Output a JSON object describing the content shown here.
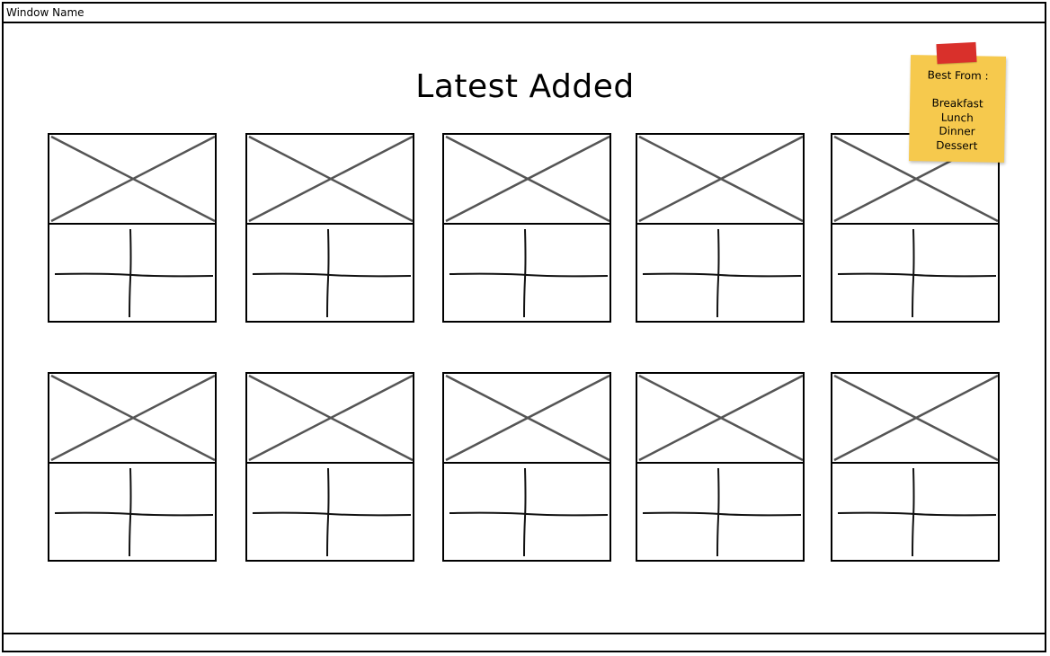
{
  "window": {
    "title": "Window Name"
  },
  "main": {
    "title": "Latest Added"
  },
  "sticky_note": {
    "heading": "Best From :",
    "items": [
      "Breakfast",
      "Lunch",
      "Dinner",
      "Dessert"
    ],
    "color": "#f6c94d",
    "tape_color": "#d9302b"
  },
  "grid": {
    "rows": 2,
    "columns": 5,
    "item_count": 10,
    "image_placeholder_icon": "image-placeholder-icon",
    "content_placeholder_icon": "cross-placeholder-icon"
  }
}
